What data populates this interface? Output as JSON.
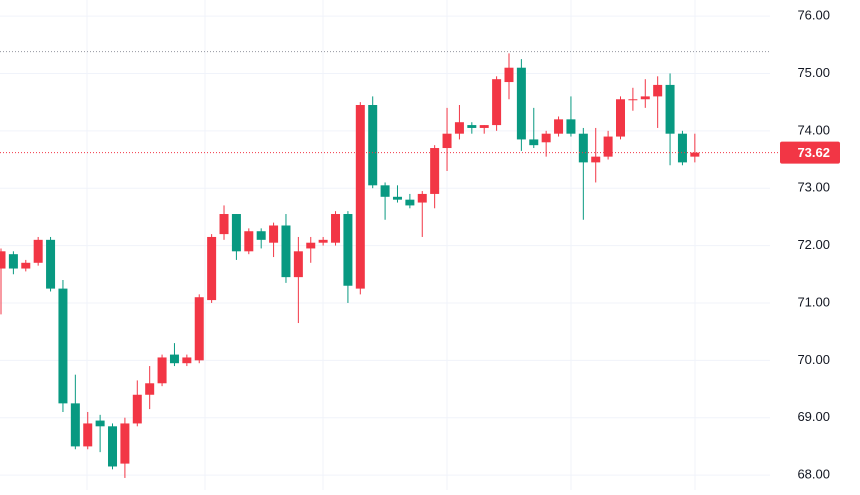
{
  "chart_data": {
    "type": "candlestick",
    "categories": [
      null,
      null,
      null,
      null,
      null,
      null,
      null,
      null,
      null,
      null,
      null,
      null,
      null,
      null,
      null,
      null,
      null,
      null,
      null,
      null,
      null,
      null,
      null,
      null,
      null,
      null,
      null,
      null,
      null,
      null,
      null,
      null,
      null,
      null,
      null,
      null,
      null,
      null,
      null,
      null,
      null,
      null,
      null,
      null,
      null,
      null,
      null,
      null,
      null,
      null,
      null,
      null,
      null,
      null,
      null,
      null,
      null
    ],
    "open": [
      71.6,
      71.85,
      71.6,
      71.7,
      72.1,
      71.25,
      69.25,
      68.5,
      68.95,
      68.85,
      68.2,
      68.9,
      69.4,
      69.6,
      70.1,
      69.95,
      70.0,
      71.05,
      72.2,
      72.55,
      71.9,
      72.25,
      72.05,
      72.35,
      71.45,
      71.95,
      72.05,
      72.05,
      72.55,
      71.25,
      74.45,
      73.05,
      72.85,
      72.8,
      72.75,
      72.9,
      73.7,
      73.95,
      74.1,
      74.05,
      74.1,
      74.85,
      75.1,
      73.85,
      73.8,
      73.95,
      74.2,
      73.95,
      73.45,
      73.55,
      73.9,
      74.55,
      74.55,
      74.6,
      74.8,
      73.95,
      73.55
    ],
    "high": [
      71.95,
      71.9,
      71.75,
      72.15,
      72.15,
      71.4,
      69.75,
      69.1,
      69.05,
      68.9,
      69.0,
      69.65,
      69.9,
      70.1,
      70.3,
      70.1,
      71.15,
      72.2,
      72.7,
      72.55,
      72.3,
      72.3,
      72.4,
      72.55,
      72.15,
      72.15,
      72.15,
      72.6,
      72.6,
      74.5,
      74.6,
      73.1,
      73.05,
      72.9,
      72.95,
      73.75,
      74.4,
      74.45,
      74.15,
      74.1,
      74.95,
      75.35,
      75.25,
      74.4,
      74.0,
      74.25,
      74.6,
      74.05,
      74.05,
      74.0,
      74.6,
      74.75,
      74.9,
      74.95,
      75.0,
      74.0,
      73.95
    ],
    "low": [
      70.8,
      71.5,
      71.55,
      71.65,
      71.2,
      69.1,
      68.45,
      68.45,
      68.4,
      68.1,
      67.95,
      68.85,
      69.15,
      69.55,
      69.9,
      69.9,
      69.95,
      71.0,
      72.1,
      71.75,
      71.85,
      71.95,
      71.8,
      71.35,
      70.65,
      71.7,
      72.0,
      72.0,
      71.0,
      71.15,
      73.0,
      72.45,
      72.75,
      72.65,
      72.15,
      72.65,
      73.3,
      73.85,
      73.95,
      73.95,
      74.0,
      74.55,
      73.65,
      73.7,
      73.55,
      73.9,
      73.9,
      72.45,
      73.1,
      73.5,
      73.85,
      74.35,
      74.4,
      74.05,
      73.4,
      73.4,
      73.45
    ],
    "close": [
      71.9,
      71.6,
      71.7,
      72.1,
      71.25,
      69.25,
      68.5,
      68.9,
      68.85,
      68.15,
      68.9,
      69.4,
      69.6,
      70.05,
      69.95,
      70.05,
      71.1,
      72.15,
      72.55,
      71.9,
      72.25,
      72.1,
      72.35,
      71.45,
      71.9,
      72.05,
      72.1,
      72.55,
      71.3,
      74.45,
      73.05,
      72.85,
      72.8,
      72.7,
      72.9,
      73.7,
      73.95,
      74.15,
      74.05,
      74.1,
      74.9,
      75.1,
      73.85,
      73.75,
      73.95,
      74.2,
      73.95,
      73.45,
      73.55,
      73.9,
      74.55,
      74.55,
      74.6,
      74.8,
      73.95,
      73.45,
      73.62
    ],
    "up_color": "#f23645",
    "down_color": "#089981",
    "last_price": 73.62,
    "reference_line": 75.38,
    "ylim": [
      67.74,
      76.28
    ],
    "yticks": [
      {
        "value": 68,
        "label": "68.00"
      },
      {
        "value": 69,
        "label": "69.00"
      },
      {
        "value": 70,
        "label": "70.00"
      },
      {
        "value": 71,
        "label": "71.00"
      },
      {
        "value": 72,
        "label": "72.00"
      },
      {
        "value": 73,
        "label": "73.00"
      },
      {
        "value": 74,
        "label": "74.00"
      },
      {
        "value": 75,
        "label": "75.00"
      },
      {
        "value": 76,
        "label": "76.00"
      }
    ],
    "grid": true
  }
}
